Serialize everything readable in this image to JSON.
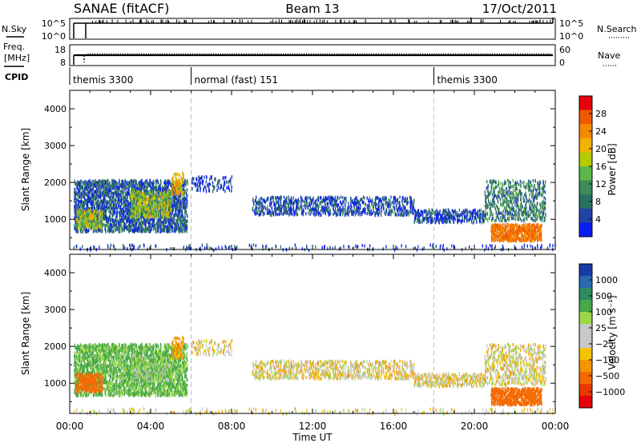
{
  "header": {
    "station": "SANAE (fitACF)",
    "beam": "Beam 13",
    "date": "17/Oct/2011"
  },
  "noise_panel": {
    "left_label": "N.Sky",
    "right_label": "N.Search",
    "left_ticks": [
      "10^5",
      "10^0"
    ],
    "right_ticks": [
      "10^5",
      "10^0"
    ]
  },
  "freq_panel": {
    "left_label_1": "Freq.",
    "left_label_2": "[MHz]",
    "right_label": "Nave",
    "left_ticks": [
      "18",
      "8"
    ],
    "right_ticks": [
      "60",
      "0"
    ]
  },
  "cpid": {
    "label": "CPID",
    "segments": [
      {
        "start_hour": 0.0,
        "label": "themis 3300"
      },
      {
        "start_hour": 6.0,
        "label": "normal (fast) 151"
      },
      {
        "start_hour": 18.0,
        "label": "themis 3300"
      }
    ]
  },
  "power_colorbar": {
    "title": "Power [dB]",
    "ticks": [
      "28",
      "24",
      "20",
      "16",
      "12",
      "8",
      "4"
    ],
    "colors": [
      "#e8000b",
      "#ee5a00",
      "#f58800",
      "#f2b400",
      "#b3cc00",
      "#5cb84a",
      "#3f8c5a",
      "#2a7060",
      "#2244a8",
      "#0a1ef0"
    ]
  },
  "velocity_colorbar": {
    "title": "Velocity [m s⁻¹]",
    "ticks": [
      "1000",
      "500",
      "100",
      "25",
      "−25",
      "−100",
      "−500",
      "−1000"
    ],
    "colors": [
      "#1a3aa8",
      "#2a6ab0",
      "#2e8a5e",
      "#47a84a",
      "#9bd848",
      "#c8c8c8",
      "#c8c8c8",
      "#f5c400",
      "#f59500",
      "#f56a00",
      "#e83a00",
      "#e8000b"
    ]
  },
  "chart_data": {
    "type": "heatmap",
    "xlabel": "Time UT",
    "ylabel": "Slant Range [km]",
    "x_ticks": [
      "00:00",
      "04:00",
      "08:00",
      "12:00",
      "16:00",
      "20:00",
      "00:00"
    ],
    "xlim_hours": [
      0,
      24
    ],
    "ylim_km": [
      180,
      4500
    ],
    "y_ticks": [
      1000,
      2000,
      3000,
      4000
    ],
    "mode_change_hours": [
      6.0,
      18.0
    ],
    "grid": false,
    "panels": [
      "power",
      "velocity"
    ],
    "scatter_regions": [
      {
        "t0": 0.2,
        "t1": 5.8,
        "r0": 700,
        "r1": 2100,
        "power": 6,
        "velocity": 120,
        "density": 0.55
      },
      {
        "t0": 0.3,
        "t1": 1.6,
        "r0": 800,
        "r1": 1300,
        "power": 12,
        "velocity": -200,
        "density": 0.6
      },
      {
        "t0": 3.0,
        "t1": 5.0,
        "r0": 1100,
        "r1": 1800,
        "power": 12,
        "velocity": 80,
        "density": 0.55
      },
      {
        "t0": 5.0,
        "t1": 5.6,
        "r0": 1700,
        "r1": 2300,
        "power": 16,
        "velocity": -60,
        "density": 0.4
      },
      {
        "t0": 9.0,
        "t1": 17.0,
        "r0": 1150,
        "r1": 1650,
        "power": 5,
        "velocity": 10,
        "density": 0.35
      },
      {
        "t0": 17.0,
        "t1": 20.5,
        "r0": 950,
        "r1": 1300,
        "power": 5,
        "velocity": 10,
        "density": 0.45
      },
      {
        "t0": 20.5,
        "t1": 23.5,
        "r0": 1000,
        "r1": 2100,
        "power": 8,
        "velocity": 15,
        "density": 0.3
      },
      {
        "t0": 20.8,
        "t1": 23.3,
        "r0": 450,
        "r1": 900,
        "power": 20,
        "velocity": -180,
        "density": 0.8
      },
      {
        "t0": 6.0,
        "t1": 8.0,
        "r0": 1800,
        "r1": 2200,
        "power": 4,
        "velocity": 0,
        "density": 0.2
      },
      {
        "t0": 0.0,
        "t1": 24.0,
        "r0": 200,
        "r1": 350,
        "power": 4,
        "velocity": 20,
        "density": 0.08
      }
    ]
  }
}
